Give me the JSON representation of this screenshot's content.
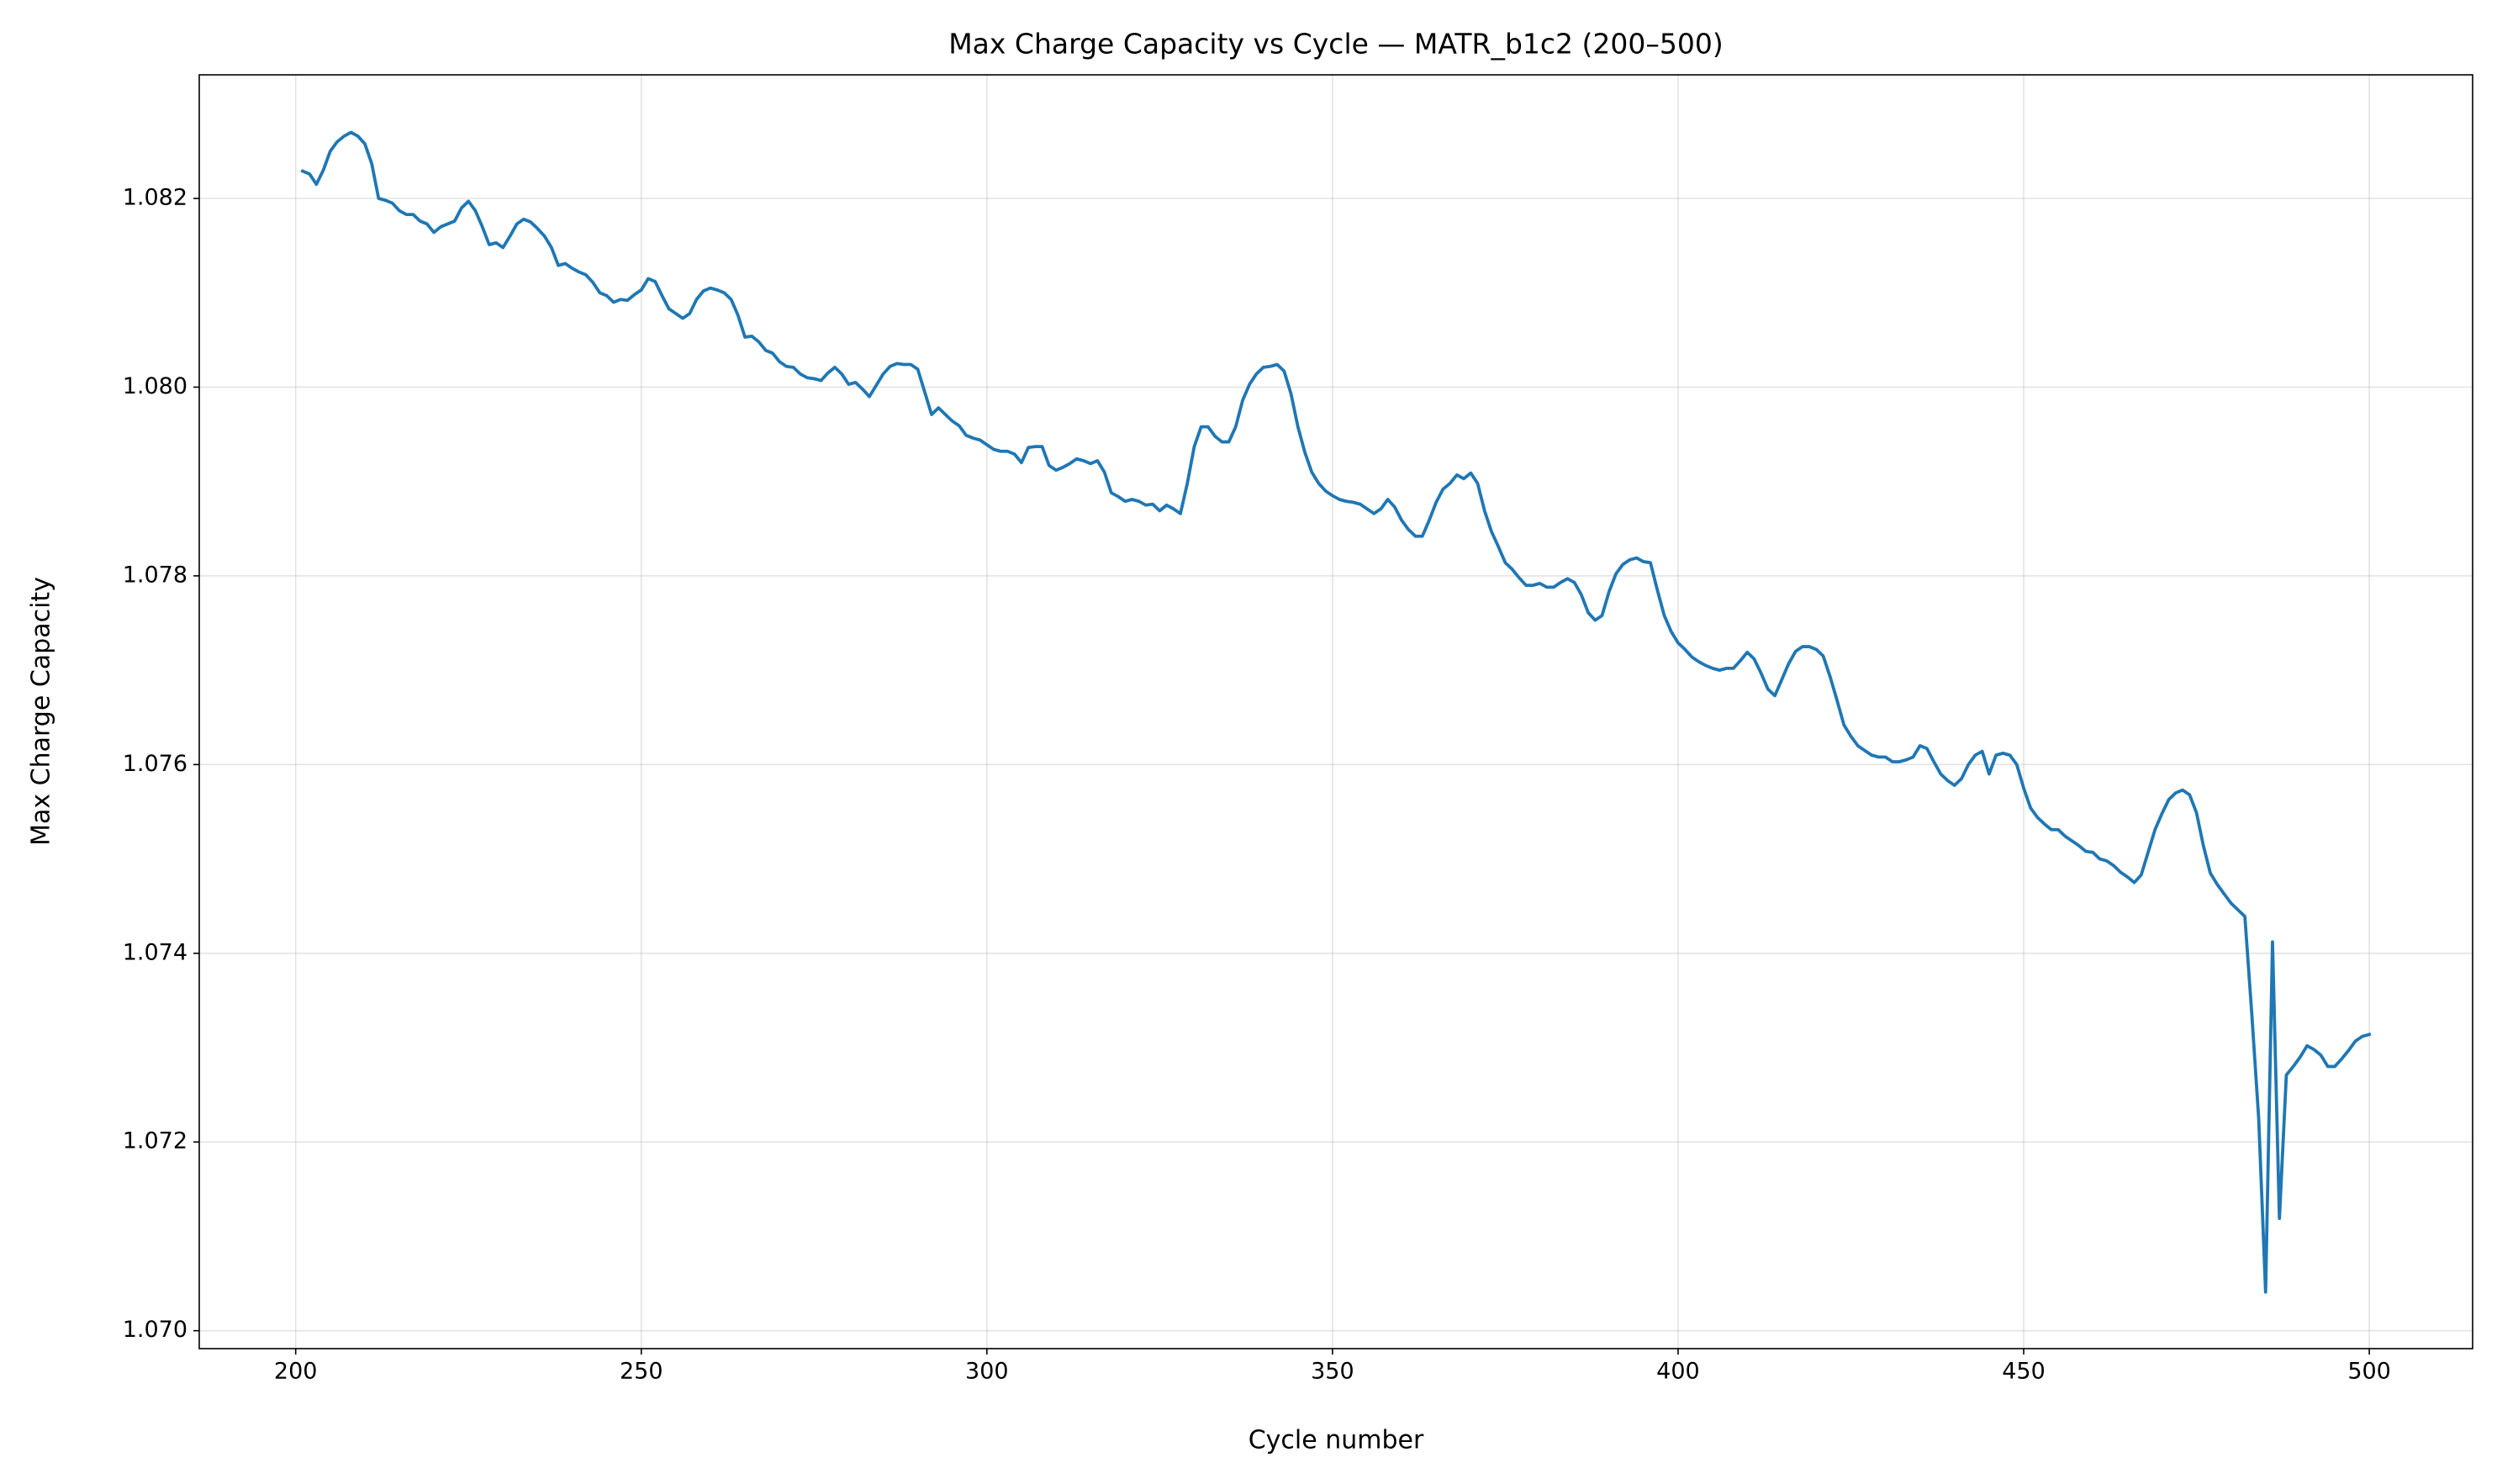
{
  "chart_data": {
    "type": "line",
    "title": "Max Charge Capacity vs Cycle — MATR_b1c2 (200–500)",
    "x_label": "Cycle number",
    "y_label": "Max Charge Capacity",
    "color": "#1f77b4",
    "grid": true,
    "xlim": [
      186.05,
      514.95
    ],
    "ylim": [
      1.06981,
      1.08331
    ],
    "xticks": [
      200,
      250,
      300,
      350,
      400,
      450,
      500
    ],
    "yticks": [
      {
        "value": 1.07,
        "label": "1.070"
      },
      1.072,
      1.074,
      1.076,
      1.078,
      {
        "value": 1.08,
        "label": "1.080"
      },
      1.082
    ],
    "x": [
      201,
      202,
      203,
      204,
      205,
      206,
      207,
      208,
      209,
      210,
      211,
      212,
      213,
      214,
      215,
      216,
      217,
      218,
      219,
      220,
      221,
      222,
      223,
      224,
      225,
      226,
      227,
      228,
      229,
      230,
      231,
      232,
      233,
      234,
      235,
      236,
      237,
      238,
      239,
      240,
      241,
      242,
      243,
      244,
      245,
      246,
      247,
      248,
      249,
      250,
      251,
      252,
      253,
      254,
      255,
      256,
      257,
      258,
      259,
      260,
      261,
      262,
      263,
      264,
      265,
      266,
      267,
      268,
      269,
      270,
      271,
      272,
      273,
      274,
      275,
      276,
      277,
      278,
      279,
      280,
      281,
      282,
      283,
      284,
      285,
      286,
      287,
      288,
      289,
      290,
      291,
      292,
      293,
      294,
      295,
      296,
      297,
      298,
      299,
      300,
      301,
      302,
      303,
      304,
      305,
      306,
      307,
      308,
      309,
      310,
      311,
      312,
      313,
      314,
      315,
      316,
      317,
      318,
      319,
      320,
      321,
      322,
      323,
      324,
      325,
      326,
      327,
      328,
      329,
      330,
      331,
      332,
      333,
      334,
      335,
      336,
      337,
      338,
      339,
      340,
      341,
      342,
      343,
      344,
      345,
      346,
      347,
      348,
      349,
      350,
      351,
      352,
      353,
      354,
      355,
      356,
      357,
      358,
      359,
      360,
      361,
      362,
      363,
      364,
      365,
      366,
      367,
      368,
      369,
      370,
      371,
      372,
      373,
      374,
      375,
      376,
      377,
      378,
      379,
      380,
      381,
      382,
      383,
      384,
      385,
      386,
      387,
      388,
      389,
      390,
      391,
      392,
      393,
      394,
      395,
      396,
      397,
      398,
      399,
      400,
      401,
      402,
      403,
      404,
      405,
      406,
      407,
      408,
      409,
      410,
      411,
      412,
      413,
      414,
      415,
      416,
      417,
      418,
      419,
      420,
      421,
      422,
      423,
      424,
      425,
      426,
      427,
      428,
      429,
      430,
      431,
      432,
      433,
      434,
      435,
      436,
      437,
      438,
      439,
      440,
      441,
      442,
      443,
      444,
      445,
      446,
      447,
      448,
      449,
      450,
      451,
      452,
      453,
      454,
      455,
      456,
      457,
      458,
      459,
      460,
      461,
      462,
      463,
      464,
      465,
      466,
      467,
      468,
      469,
      470,
      471,
      472,
      473,
      474,
      475,
      476,
      477,
      478,
      479,
      480,
      481,
      482,
      483,
      484,
      485,
      486,
      487,
      488,
      489,
      490,
      491,
      492,
      493,
      494,
      495,
      496,
      497,
      498,
      499,
      500
    ],
    "values": [
      1.08229,
      1.08226,
      1.08215,
      1.0823,
      1.0825,
      1.0826,
      1.08266,
      1.0827,
      1.08266,
      1.08258,
      1.08237,
      1.082,
      1.08198,
      1.08195,
      1.08187,
      1.08183,
      1.08183,
      1.08176,
      1.08173,
      1.08164,
      1.0817,
      1.08173,
      1.08176,
      1.0819,
      1.08197,
      1.08187,
      1.0817,
      1.08151,
      1.08153,
      1.08148,
      1.0816,
      1.08173,
      1.08178,
      1.08175,
      1.08168,
      1.0816,
      1.08148,
      1.08129,
      1.08131,
      1.08126,
      1.08122,
      1.08119,
      1.08111,
      1.081,
      1.08097,
      1.0809,
      1.08093,
      1.08092,
      1.08098,
      1.08103,
      1.08115,
      1.08112,
      1.08097,
      1.08083,
      1.08078,
      1.08073,
      1.08078,
      1.08093,
      1.08102,
      1.08105,
      1.08103,
      1.081,
      1.08093,
      1.08076,
      1.08053,
      1.08054,
      1.08048,
      1.08039,
      1.08036,
      1.08027,
      1.08022,
      1.08021,
      1.08014,
      1.0801,
      1.08009,
      1.08007,
      1.08015,
      1.08021,
      1.08014,
      1.08003,
      1.08005,
      1.07998,
      1.0799,
      1.08002,
      1.08014,
      1.08022,
      1.08025,
      1.08024,
      1.08024,
      1.08019,
      1.07995,
      1.07971,
      1.07978,
      1.07971,
      1.07964,
      1.07959,
      1.07949,
      1.07946,
      1.07944,
      1.07939,
      1.07934,
      1.07932,
      1.07932,
      1.07929,
      1.0792,
      1.07936,
      1.07937,
      1.07937,
      1.07917,
      1.07912,
      1.07915,
      1.07919,
      1.07924,
      1.07922,
      1.07919,
      1.07922,
      1.0791,
      1.07888,
      1.07884,
      1.07879,
      1.07881,
      1.07879,
      1.07875,
      1.07876,
      1.07869,
      1.07875,
      1.07871,
      1.07866,
      1.07898,
      1.07937,
      1.07958,
      1.07958,
      1.07948,
      1.07942,
      1.07942,
      1.07958,
      1.07986,
      1.08003,
      1.08014,
      1.08021,
      1.08022,
      1.08024,
      1.08017,
      1.07993,
      1.07958,
      1.07931,
      1.0791,
      1.07898,
      1.0789,
      1.07885,
      1.07881,
      1.07879,
      1.07878,
      1.07876,
      1.07871,
      1.07866,
      1.07871,
      1.07881,
      1.07873,
      1.07859,
      1.07849,
      1.07842,
      1.07842,
      1.07859,
      1.07878,
      1.07892,
      1.07898,
      1.07907,
      1.07903,
      1.07909,
      1.07898,
      1.07869,
      1.07847,
      1.07831,
      1.07814,
      1.07807,
      1.07798,
      1.0779,
      1.0779,
      1.07792,
      1.07788,
      1.07788,
      1.07793,
      1.07797,
      1.07793,
      1.0778,
      1.07761,
      1.07753,
      1.07758,
      1.07783,
      1.07802,
      1.07812,
      1.07817,
      1.07819,
      1.07815,
      1.07814,
      1.07785,
      1.07758,
      1.07741,
      1.07729,
      1.07722,
      1.07714,
      1.07709,
      1.07705,
      1.07702,
      1.077,
      1.07702,
      1.07702,
      1.0771,
      1.07719,
      1.07712,
      1.07697,
      1.0768,
      1.07673,
      1.0769,
      1.07707,
      1.0772,
      1.07725,
      1.07725,
      1.07722,
      1.07715,
      1.07693,
      1.07668,
      1.07642,
      1.0763,
      1.0762,
      1.07615,
      1.0761,
      1.07608,
      1.07608,
      1.07603,
      1.07603,
      1.07605,
      1.07608,
      1.0762,
      1.07617,
      1.07603,
      1.0759,
      1.07583,
      1.07578,
      1.07585,
      1.076,
      1.0761,
      1.07614,
      1.0759,
      1.0761,
      1.07612,
      1.0761,
      1.076,
      1.07575,
      1.07554,
      1.07544,
      1.07537,
      1.07531,
      1.07531,
      1.07524,
      1.07519,
      1.07514,
      1.07508,
      1.07507,
      1.075,
      1.07498,
      1.07493,
      1.07486,
      1.07481,
      1.07475,
      1.07483,
      1.07507,
      1.07531,
      1.07548,
      1.07563,
      1.0757,
      1.07573,
      1.07568,
      1.07549,
      1.07514,
      1.07485,
      1.07473,
      1.07463,
      1.07453,
      1.07446,
      1.07439,
      1.07336,
      1.07225,
      1.07041,
      1.07412,
      1.07119,
      1.07271,
      1.0728,
      1.0729,
      1.07302,
      1.07298,
      1.07292,
      1.0728,
      1.0728,
      1.07288,
      1.07297,
      1.07307,
      1.07312,
      1.07314
    ]
  }
}
